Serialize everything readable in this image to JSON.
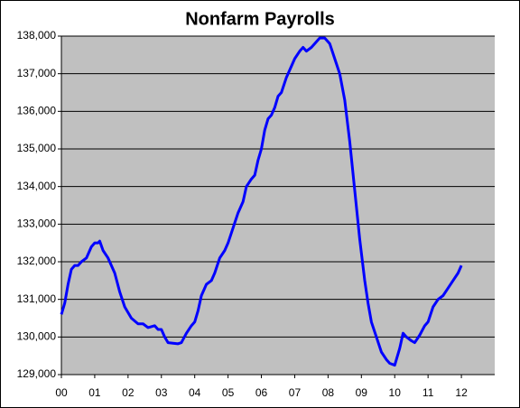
{
  "chart_data": {
    "type": "line",
    "title": "Nonfarm Payrolls",
    "x": [
      0,
      0.1,
      0.2,
      0.3,
      0.4,
      0.5,
      0.6,
      0.75,
      0.9,
      1.0,
      1.1,
      1.15,
      1.25,
      1.4,
      1.6,
      1.75,
      1.9,
      2.1,
      2.3,
      2.45,
      2.6,
      2.8,
      2.9,
      3.0,
      3.1,
      3.2,
      3.5,
      3.6,
      3.75,
      3.9,
      4.0,
      4.1,
      4.2,
      4.35,
      4.5,
      4.6,
      4.75,
      4.9,
      5.0,
      5.15,
      5.3,
      5.45,
      5.55,
      5.7,
      5.8,
      5.9,
      6.0,
      6.1,
      6.2,
      6.3,
      6.4,
      6.5,
      6.6,
      6.75,
      6.9,
      7.0,
      7.15,
      7.25,
      7.35,
      7.5,
      7.6,
      7.75,
      7.9,
      8.05,
      8.2,
      8.35,
      8.5,
      8.65,
      8.8,
      8.95,
      9.1,
      9.2,
      9.3,
      9.45,
      9.6,
      9.75,
      9.85,
      10.0,
      10.15,
      10.25,
      10.35,
      10.5,
      10.6,
      10.75,
      10.9,
      11.0,
      11.15,
      11.3,
      11.45,
      11.6,
      11.75,
      11.9,
      12.0
    ],
    "series": [
      {
        "color": "#0000ff",
        "values": [
          130600,
          130900,
          131400,
          131800,
          131900,
          131900,
          132000,
          132100,
          132400,
          132500,
          132500,
          132550,
          132300,
          132100,
          131700,
          131200,
          130800,
          130500,
          130350,
          130350,
          130250,
          130300,
          130200,
          130200,
          130000,
          129850,
          129820,
          129850,
          130100,
          130300,
          130400,
          130700,
          131100,
          131400,
          131500,
          131700,
          132100,
          132300,
          132500,
          132900,
          133300,
          133600,
          134000,
          134200,
          134300,
          134700,
          135000,
          135500,
          135800,
          135900,
          136100,
          136400,
          136500,
          136900,
          137200,
          137400,
          137600,
          137700,
          137600,
          137700,
          137800,
          137950,
          137950,
          137800,
          137400,
          137000,
          136300,
          135200,
          133900,
          132600,
          131500,
          130900,
          130400,
          130000,
          129600,
          129400,
          129300,
          129250,
          129700,
          130100,
          130000,
          129900,
          129850,
          130050,
          130300,
          130400,
          130800,
          131000,
          131100,
          131300,
          131500,
          131700,
          131900
        ]
      }
    ],
    "xlim": [
      0,
      13
    ],
    "xticks": [
      {
        "value": 0,
        "label": "00"
      },
      {
        "value": 1,
        "label": "01"
      },
      {
        "value": 2,
        "label": "02"
      },
      {
        "value": 3,
        "label": "03"
      },
      {
        "value": 4,
        "label": "04"
      },
      {
        "value": 5,
        "label": "05"
      },
      {
        "value": 6,
        "label": "06"
      },
      {
        "value": 7,
        "label": "07"
      },
      {
        "value": 8,
        "label": "08"
      },
      {
        "value": 9,
        "label": "09"
      },
      {
        "value": 10,
        "label": "10"
      },
      {
        "value": 11,
        "label": "11"
      },
      {
        "value": 12,
        "label": "12"
      }
    ],
    "ylim": [
      129000,
      138000
    ],
    "yticks": [
      {
        "value": 129000,
        "label": "129,000"
      },
      {
        "value": 130000,
        "label": "130,000"
      },
      {
        "value": 131000,
        "label": "131,000"
      },
      {
        "value": 132000,
        "label": "132,000"
      },
      {
        "value": 133000,
        "label": "133,000"
      },
      {
        "value": 134000,
        "label": "134,000"
      },
      {
        "value": 135000,
        "label": "135,000"
      },
      {
        "value": 136000,
        "label": "136,000"
      },
      {
        "value": 137000,
        "label": "137,000"
      },
      {
        "value": 138000,
        "label": "138,000"
      }
    ],
    "grid": true,
    "plot_background": "#c0c0c0"
  }
}
